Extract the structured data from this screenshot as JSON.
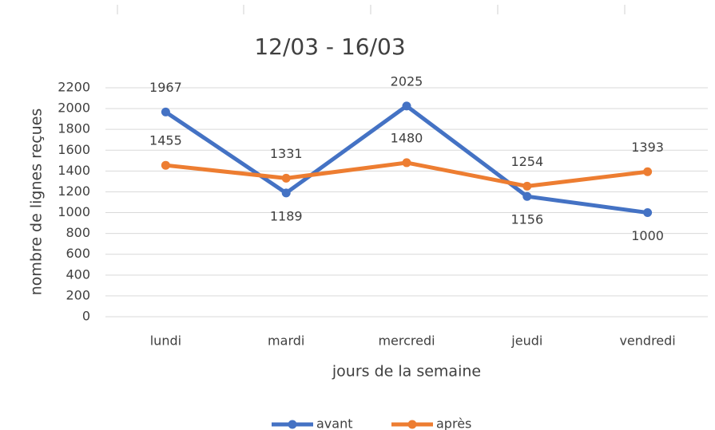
{
  "chart_data": {
    "type": "line",
    "title": "12/03 - 16/03",
    "x_label": "jours de la semaine",
    "y_label": "nombre de lignes reçues",
    "categories": [
      "lundi",
      "mardi",
      "mercredi",
      "jeudi",
      "vendredi"
    ],
    "series": [
      {
        "name": "avant",
        "color": "#4472c4",
        "values": [
          1967,
          1189,
          2025,
          1156,
          1000
        ]
      },
      {
        "name": "après",
        "color": "#ed7d31",
        "values": [
          1455,
          1331,
          1480,
          1254,
          1393
        ]
      }
    ],
    "ylim": [
      0,
      2200
    ],
    "yticks": [
      0,
      200,
      400,
      600,
      800,
      1000,
      1200,
      1400,
      1600,
      1800,
      2000,
      2200
    ],
    "grid": true,
    "legend": "bottom"
  }
}
